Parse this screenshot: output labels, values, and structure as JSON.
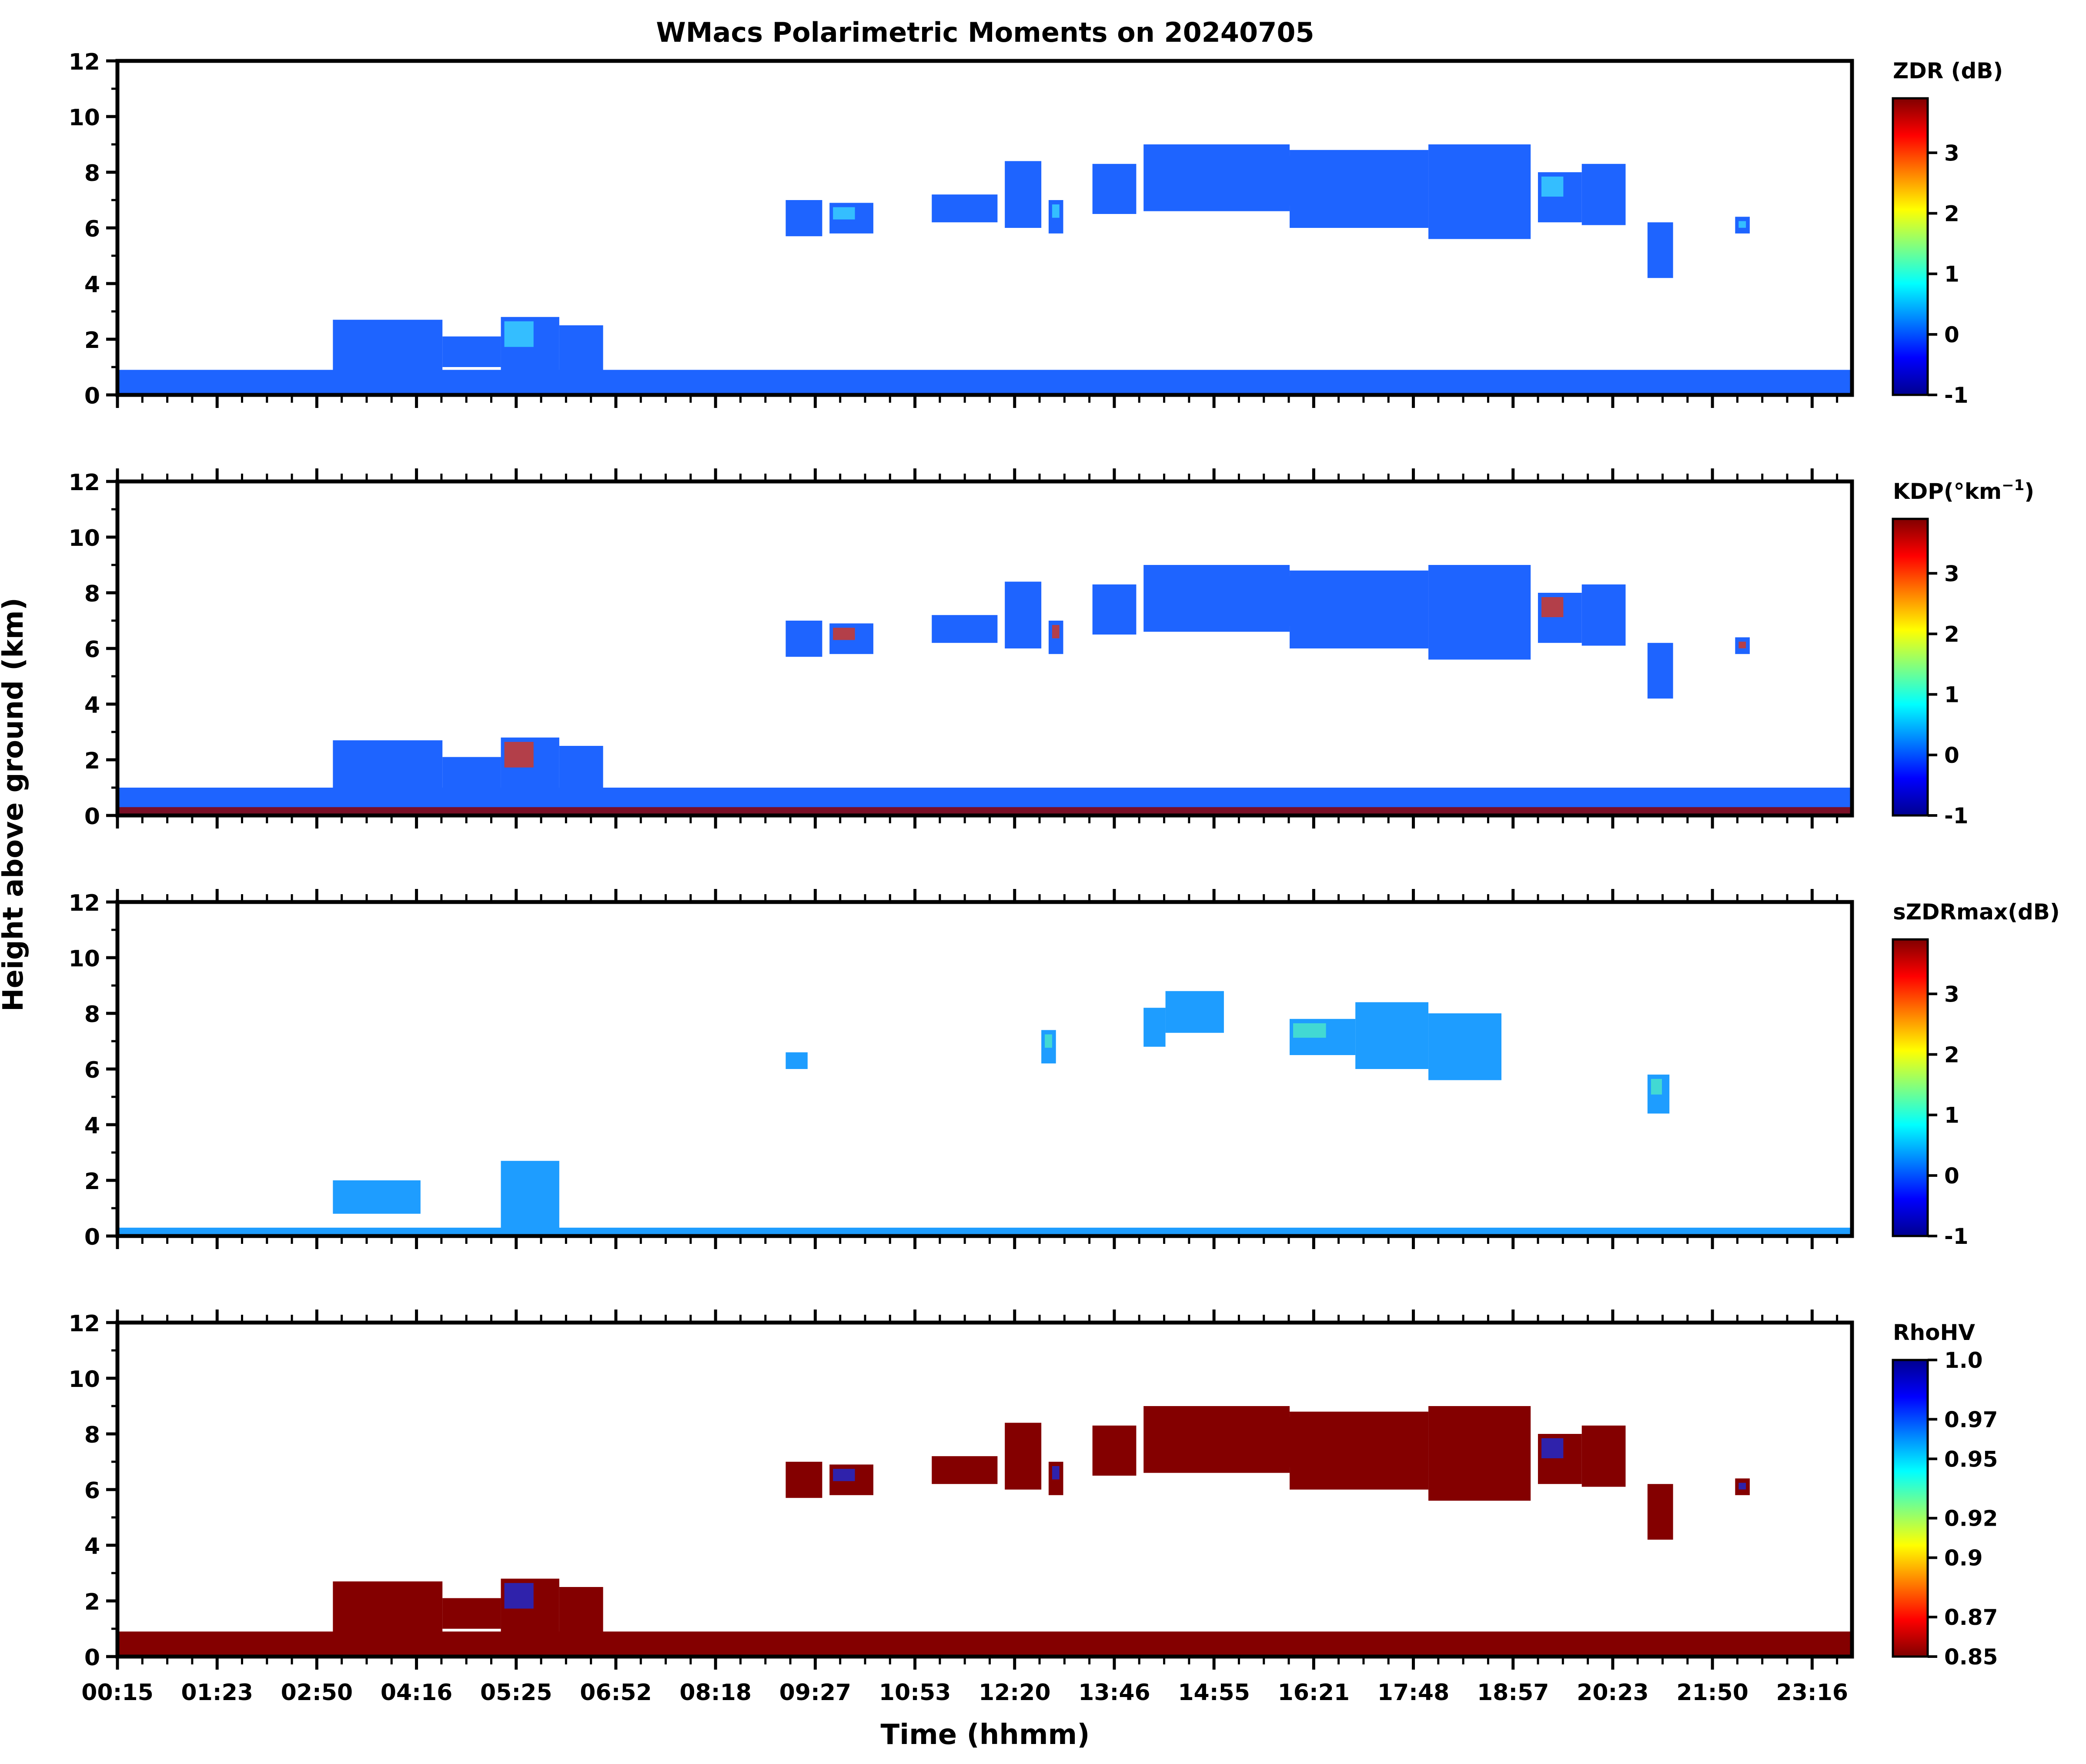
{
  "figure": {
    "title": "WMacs Polarimetric Moments on 20240705",
    "ylabel": "Height above ground (km)",
    "xlabel": "Time (hhmm)"
  },
  "chart_data": [
    {
      "type": "heatmap",
      "panel": "ZDR",
      "colorbar_label": "ZDR (dB)",
      "colorbar_ticks": [
        "-1",
        "0",
        "1",
        "2",
        "3"
      ],
      "clim": [
        -1,
        3.9
      ],
      "colormap": "jet",
      "ylim": [
        0,
        12
      ],
      "yticks": [
        "0",
        "2",
        "4",
        "6",
        "8",
        "10",
        "12"
      ],
      "xlim": [
        0.25,
        24.0
      ],
      "typical_color": "#1e64ff",
      "accent_color": "#3ad4ff"
    },
    {
      "type": "heatmap",
      "panel": "KDP",
      "colorbar_label": "KDP(°km",
      "colorbar_label_sup": "−1",
      "colorbar_label_end": ")",
      "colorbar_ticks": [
        "-1",
        "0",
        "1",
        "2",
        "3"
      ],
      "clim": [
        -1,
        3.9
      ],
      "colormap": "jet",
      "ylim": [
        0,
        12
      ],
      "yticks": [
        "0",
        "2",
        "4",
        "6",
        "8",
        "10",
        "12"
      ],
      "xlim": [
        0.25,
        24.0
      ],
      "typical_color": "#1e64ff",
      "accent_color": "#d8361b"
    },
    {
      "type": "heatmap",
      "panel": "sZDRmax",
      "colorbar_label": "sZDRmax(dB)",
      "colorbar_ticks": [
        "-1",
        "0",
        "1",
        "2",
        "3"
      ],
      "clim": [
        -1,
        3.9
      ],
      "colormap": "jet",
      "ylim": [
        0,
        12
      ],
      "yticks": [
        "0",
        "2",
        "4",
        "6",
        "8",
        "10",
        "12"
      ],
      "xlim": [
        0.25,
        24.0
      ],
      "typical_color": "#1e9dff",
      "accent_color": "#4be8c8"
    },
    {
      "type": "heatmap",
      "panel": "RhoHV",
      "colorbar_label": "RhoHV",
      "colorbar_ticks": [
        "0.85",
        "0.87",
        "0.9",
        "0.92",
        "0.95",
        "0.97",
        "1.0"
      ],
      "clim": [
        0.85,
        1.0
      ],
      "colormap": "jet_r",
      "ylim": [
        0,
        12
      ],
      "yticks": [
        "0",
        "2",
        "4",
        "6",
        "8",
        "10",
        "12"
      ],
      "xlim": [
        0.25,
        24.0
      ],
      "typical_color": "#840000",
      "accent_color": "#1a2bd6"
    }
  ],
  "xticks": [
    "00:15",
    "01:23",
    "02:50",
    "04:16",
    "05:25",
    "06:52",
    "08:18",
    "09:27",
    "10:53",
    "12:20",
    "13:46",
    "14:55",
    "16:21",
    "17:48",
    "18:57",
    "20:23",
    "21:50",
    "23:16"
  ],
  "jet_colors": [
    "#00008f",
    "#0000ff",
    "#0080ff",
    "#00ffff",
    "#80ff80",
    "#ffff00",
    "#ff8000",
    "#ff0000",
    "#800000"
  ]
}
